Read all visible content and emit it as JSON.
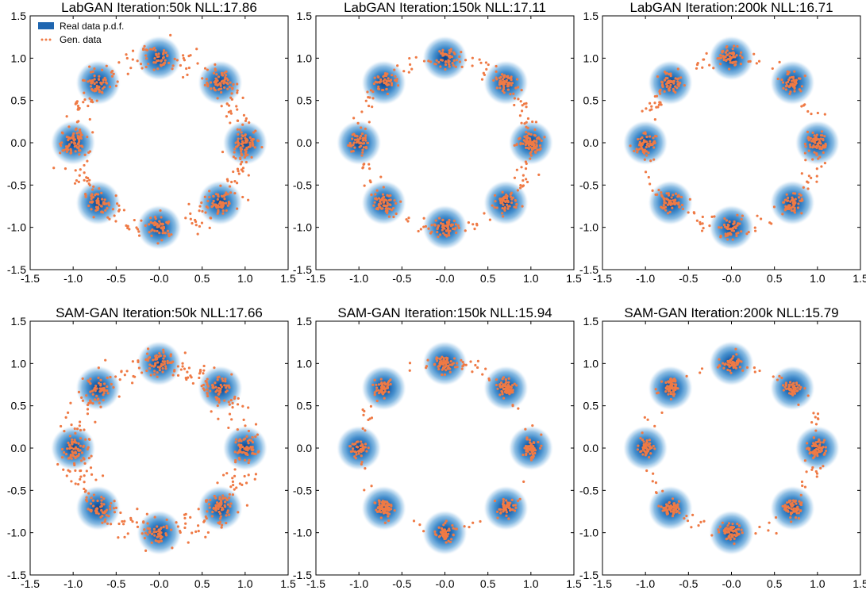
{
  "figure": {
    "grid": "2x3"
  },
  "colors": {
    "real_pdf": "#1f66b0",
    "real_pdf_light": "#a9cdea",
    "gen_points": "#ef7a45",
    "axis": "#000000"
  },
  "chart_data": [
    {
      "type": "scatter",
      "title": "LabGAN Iteration:50k NLL:17.86",
      "xlim": [
        -1.5,
        1.5
      ],
      "ylim": [
        -1.5,
        1.5
      ],
      "xticks": [
        "-1.5",
        "-1.0",
        "-0.5",
        "-0.0",
        "0.5",
        "1.0",
        "1.5"
      ],
      "yticks": [
        "1.5",
        "1.0",
        "0.5",
        "0.0",
        "-0.5",
        "-1.0",
        "-1.5"
      ],
      "legend": {
        "location": "top-left",
        "entries": [
          "Real data p.d.f.",
          "Gen. data"
        ]
      },
      "modes": [
        [
          1.0,
          0.0
        ],
        [
          0.71,
          0.71
        ],
        [
          0.0,
          1.0
        ],
        [
          -0.71,
          0.71
        ],
        [
          -1.0,
          0.0
        ],
        [
          -0.71,
          -0.71
        ],
        [
          0.0,
          -1.0
        ],
        [
          0.71,
          -0.71
        ]
      ],
      "generated": {
        "count": 620,
        "ring_fraction": 0.55,
        "mode_spread": 0.07,
        "ring_spread": 0.09,
        "seed": 11
      }
    },
    {
      "type": "scatter",
      "title": "LabGAN Iteration:150k NLL:17.11",
      "xlim": [
        -1.5,
        1.5
      ],
      "ylim": [
        -1.5,
        1.5
      ],
      "xticks": [
        "-1.5",
        "-1.0",
        "-0.5",
        "-0.0",
        "0.5",
        "1.0",
        "1.5"
      ],
      "yticks": [
        "1.5",
        "1.0",
        "0.5",
        "0.0",
        "-0.5",
        "-1.0",
        "-1.5"
      ],
      "modes": [
        [
          1.0,
          0.0
        ],
        [
          0.71,
          0.71
        ],
        [
          0.0,
          1.0
        ],
        [
          -0.71,
          0.71
        ],
        [
          -1.0,
          0.0
        ],
        [
          -0.71,
          -0.71
        ],
        [
          0.0,
          -1.0
        ],
        [
          0.71,
          -0.71
        ]
      ],
      "generated": {
        "count": 560,
        "ring_fraction": 0.35,
        "mode_spread": 0.06,
        "ring_spread": 0.06,
        "seed": 23
      }
    },
    {
      "type": "scatter",
      "title": "LabGAN Iteration:200k NLL:16.71",
      "xlim": [
        -1.5,
        1.5
      ],
      "ylim": [
        -1.5,
        1.5
      ],
      "xticks": [
        "-1.5",
        "-1.0",
        "-0.5",
        "-0.0",
        "0.5",
        "1.0",
        "1.5"
      ],
      "yticks": [
        "1.5",
        "1.0",
        "0.5",
        "0.0",
        "-0.5",
        "-1.0",
        "-1.5"
      ],
      "modes": [
        [
          1.0,
          0.0
        ],
        [
          0.71,
          0.71
        ],
        [
          0.0,
          1.0
        ],
        [
          -0.71,
          0.71
        ],
        [
          -1.0,
          0.0
        ],
        [
          -0.71,
          -0.71
        ],
        [
          0.0,
          -1.0
        ],
        [
          0.71,
          -0.71
        ]
      ],
      "generated": {
        "count": 540,
        "ring_fraction": 0.3,
        "mode_spread": 0.06,
        "ring_spread": 0.06,
        "seed": 37
      }
    },
    {
      "type": "scatter",
      "title": "SAM-GAN Iteration:50k NLL:17.66",
      "xlim": [
        -1.5,
        1.5
      ],
      "ylim": [
        -1.5,
        1.5
      ],
      "xticks": [
        "-1.5",
        "-1.0",
        "-0.5",
        "-0.0",
        "0.5",
        "1.0",
        "1.5"
      ],
      "yticks": [
        "1.5",
        "1.0",
        "0.5",
        "0.0",
        "-0.5",
        "-1.0",
        "-1.5"
      ],
      "modes": [
        [
          1.0,
          0.0
        ],
        [
          0.71,
          0.71
        ],
        [
          0.0,
          1.0
        ],
        [
          -0.71,
          0.71
        ],
        [
          -1.0,
          0.0
        ],
        [
          -0.71,
          -0.71
        ],
        [
          0.0,
          -1.0
        ],
        [
          0.71,
          -0.71
        ]
      ],
      "generated": {
        "count": 640,
        "ring_fraction": 0.55,
        "mode_spread": 0.07,
        "ring_spread": 0.1,
        "seed": 41
      }
    },
    {
      "type": "scatter",
      "title": "SAM-GAN Iteration:150k NLL:15.94",
      "xlim": [
        -1.5,
        1.5
      ],
      "ylim": [
        -1.5,
        1.5
      ],
      "xticks": [
        "-1.5",
        "-1.0",
        "-0.5",
        "-0.0",
        "0.5",
        "1.0",
        "1.5"
      ],
      "yticks": [
        "1.5",
        "1.0",
        "0.5",
        "0.0",
        "-0.5",
        "-1.0",
        "-1.5"
      ],
      "modes": [
        [
          1.0,
          0.0
        ],
        [
          0.71,
          0.71
        ],
        [
          0.0,
          1.0
        ],
        [
          -0.71,
          0.71
        ],
        [
          -1.0,
          0.0
        ],
        [
          -0.71,
          -0.71
        ],
        [
          0.0,
          -1.0
        ],
        [
          0.71,
          -0.71
        ]
      ],
      "generated": {
        "count": 520,
        "ring_fraction": 0.2,
        "mode_spread": 0.05,
        "ring_spread": 0.05,
        "seed": 53
      }
    },
    {
      "type": "scatter",
      "title": "SAM-GAN Iteration:200k NLL:15.79",
      "xlim": [
        -1.5,
        1.5
      ],
      "ylim": [
        -1.5,
        1.5
      ],
      "xticks": [
        "-1.5",
        "-1.0",
        "-0.5",
        "-0.0",
        "0.5",
        "1.0",
        "1.5"
      ],
      "yticks": [
        "1.5",
        "1.0",
        "0.5",
        "0.0",
        "-0.5",
        "-1.0",
        "-1.5"
      ],
      "modes": [
        [
          1.0,
          0.0
        ],
        [
          0.71,
          0.71
        ],
        [
          0.0,
          1.0
        ],
        [
          -0.71,
          0.71
        ],
        [
          -1.0,
          0.0
        ],
        [
          -0.71,
          -0.71
        ],
        [
          0.0,
          -1.0
        ],
        [
          0.71,
          -0.71
        ]
      ],
      "generated": {
        "count": 520,
        "ring_fraction": 0.18,
        "mode_spread": 0.05,
        "ring_spread": 0.05,
        "seed": 67
      }
    }
  ]
}
